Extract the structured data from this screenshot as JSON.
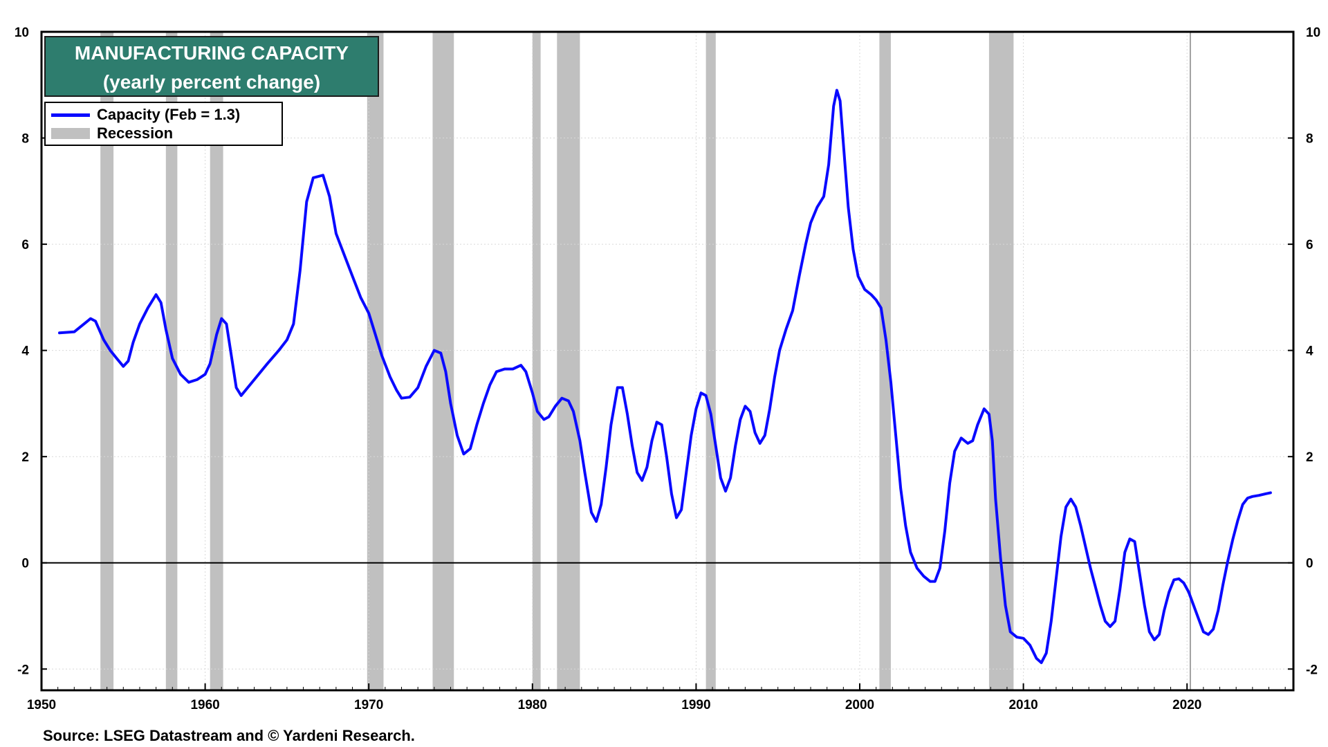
{
  "title": {
    "line1": "MANUFACTURING CAPACITY",
    "line2": "(yearly percent change)"
  },
  "legend": {
    "series_label": "Capacity (Feb = 1.3)",
    "recession_label": "Recession"
  },
  "source": "Source: LSEG Datastream and © Yardeni Research.",
  "colors": {
    "series": "#0a0aff",
    "recession": "#c0c0c0",
    "title_bg": "#2e7d6e"
  },
  "chart_data": {
    "type": "line",
    "title": "MANUFACTURING CAPACITY (yearly percent change)",
    "xlabel": "",
    "ylabel": "",
    "xlim": [
      1950,
      2026.5
    ],
    "ylim": [
      -2.4,
      10
    ],
    "y_ticks": [
      -2,
      0,
      2,
      4,
      6,
      8,
      10
    ],
    "x_ticks": [
      1950,
      1960,
      1970,
      1980,
      1990,
      2000,
      2010,
      2020
    ],
    "zero_line": 0,
    "reference_vline": 2020.2,
    "recessions": [
      [
        1953.6,
        1954.4
      ],
      [
        1957.6,
        1958.3
      ],
      [
        1960.3,
        1961.1
      ],
      [
        1969.9,
        1970.9
      ],
      [
        1973.9,
        1975.2
      ],
      [
        1980.0,
        1980.5
      ],
      [
        1981.5,
        1982.9
      ],
      [
        1990.6,
        1991.2
      ],
      [
        2001.2,
        2001.9
      ],
      [
        2007.9,
        2009.4
      ]
    ],
    "series": [
      {
        "name": "Capacity (Feb = 1.3)",
        "points": [
          [
            1951.1,
            4.33
          ],
          [
            1952.0,
            4.35
          ],
          [
            1952.6,
            4.5
          ],
          [
            1953.0,
            4.6
          ],
          [
            1953.3,
            4.55
          ],
          [
            1953.8,
            4.2
          ],
          [
            1954.2,
            4.0
          ],
          [
            1954.6,
            3.85
          ],
          [
            1955.0,
            3.7
          ],
          [
            1955.3,
            3.8
          ],
          [
            1955.6,
            4.15
          ],
          [
            1956.0,
            4.5
          ],
          [
            1956.5,
            4.8
          ],
          [
            1957.0,
            5.05
          ],
          [
            1957.3,
            4.9
          ],
          [
            1957.6,
            4.4
          ],
          [
            1958.0,
            3.85
          ],
          [
            1958.5,
            3.55
          ],
          [
            1959.0,
            3.4
          ],
          [
            1959.5,
            3.45
          ],
          [
            1960.0,
            3.55
          ],
          [
            1960.3,
            3.75
          ],
          [
            1960.7,
            4.3
          ],
          [
            1961.0,
            4.6
          ],
          [
            1961.3,
            4.5
          ],
          [
            1961.6,
            3.9
          ],
          [
            1961.9,
            3.3
          ],
          [
            1962.2,
            3.15
          ],
          [
            1963.0,
            3.45
          ],
          [
            1963.8,
            3.75
          ],
          [
            1964.5,
            4.0
          ],
          [
            1965.0,
            4.2
          ],
          [
            1965.4,
            4.5
          ],
          [
            1965.8,
            5.5
          ],
          [
            1966.2,
            6.8
          ],
          [
            1966.6,
            7.25
          ],
          [
            1967.2,
            7.3
          ],
          [
            1967.6,
            6.9
          ],
          [
            1968.0,
            6.2
          ],
          [
            1968.5,
            5.8
          ],
          [
            1969.0,
            5.4
          ],
          [
            1969.5,
            5.0
          ],
          [
            1970.0,
            4.7
          ],
          [
            1970.4,
            4.3
          ],
          [
            1970.8,
            3.9
          ],
          [
            1971.3,
            3.5
          ],
          [
            1971.7,
            3.25
          ],
          [
            1972.0,
            3.1
          ],
          [
            1972.5,
            3.12
          ],
          [
            1973.0,
            3.3
          ],
          [
            1973.5,
            3.7
          ],
          [
            1974.0,
            4.0
          ],
          [
            1974.4,
            3.95
          ],
          [
            1974.7,
            3.6
          ],
          [
            1975.0,
            3.0
          ],
          [
            1975.4,
            2.4
          ],
          [
            1975.8,
            2.05
          ],
          [
            1976.2,
            2.15
          ],
          [
            1976.6,
            2.6
          ],
          [
            1977.0,
            3.0
          ],
          [
            1977.4,
            3.35
          ],
          [
            1977.8,
            3.6
          ],
          [
            1978.3,
            3.65
          ],
          [
            1978.8,
            3.65
          ],
          [
            1979.3,
            3.72
          ],
          [
            1979.6,
            3.6
          ],
          [
            1980.0,
            3.2
          ],
          [
            1980.3,
            2.85
          ],
          [
            1980.7,
            2.7
          ],
          [
            1981.0,
            2.75
          ],
          [
            1981.4,
            2.95
          ],
          [
            1981.8,
            3.1
          ],
          [
            1982.2,
            3.05
          ],
          [
            1982.5,
            2.85
          ],
          [
            1982.9,
            2.3
          ],
          [
            1983.2,
            1.7
          ],
          [
            1983.6,
            0.95
          ],
          [
            1983.9,
            0.78
          ],
          [
            1984.2,
            1.1
          ],
          [
            1984.5,
            1.8
          ],
          [
            1984.8,
            2.6
          ],
          [
            1985.2,
            3.3
          ],
          [
            1985.5,
            3.3
          ],
          [
            1985.8,
            2.8
          ],
          [
            1986.1,
            2.2
          ],
          [
            1986.4,
            1.7
          ],
          [
            1986.7,
            1.55
          ],
          [
            1987.0,
            1.8
          ],
          [
            1987.3,
            2.3
          ],
          [
            1987.6,
            2.65
          ],
          [
            1987.9,
            2.6
          ],
          [
            1988.2,
            2.0
          ],
          [
            1988.5,
            1.3
          ],
          [
            1988.8,
            0.85
          ],
          [
            1989.1,
            1.0
          ],
          [
            1989.4,
            1.7
          ],
          [
            1989.7,
            2.4
          ],
          [
            1990.0,
            2.9
          ],
          [
            1990.3,
            3.2
          ],
          [
            1990.6,
            3.15
          ],
          [
            1990.9,
            2.8
          ],
          [
            1991.2,
            2.2
          ],
          [
            1991.5,
            1.6
          ],
          [
            1991.8,
            1.35
          ],
          [
            1992.1,
            1.6
          ],
          [
            1992.4,
            2.2
          ],
          [
            1992.7,
            2.7
          ],
          [
            1993.0,
            2.95
          ],
          [
            1993.3,
            2.85
          ],
          [
            1993.6,
            2.45
          ],
          [
            1993.9,
            2.25
          ],
          [
            1994.2,
            2.4
          ],
          [
            1994.5,
            2.9
          ],
          [
            1994.8,
            3.5
          ],
          [
            1995.1,
            4.0
          ],
          [
            1995.5,
            4.4
          ],
          [
            1995.9,
            4.75
          ],
          [
            1996.3,
            5.4
          ],
          [
            1996.7,
            6.0
          ],
          [
            1997.0,
            6.4
          ],
          [
            1997.4,
            6.7
          ],
          [
            1997.8,
            6.9
          ],
          [
            1998.1,
            7.5
          ],
          [
            1998.4,
            8.6
          ],
          [
            1998.6,
            8.9
          ],
          [
            1998.8,
            8.7
          ],
          [
            1999.0,
            7.9
          ],
          [
            1999.3,
            6.7
          ],
          [
            1999.6,
            5.9
          ],
          [
            1999.9,
            5.4
          ],
          [
            2000.3,
            5.15
          ],
          [
            2000.7,
            5.05
          ],
          [
            2001.0,
            4.95
          ],
          [
            2001.3,
            4.8
          ],
          [
            2001.6,
            4.2
          ],
          [
            2001.9,
            3.4
          ],
          [
            2002.2,
            2.4
          ],
          [
            2002.5,
            1.4
          ],
          [
            2002.8,
            0.7
          ],
          [
            2003.1,
            0.2
          ],
          [
            2003.5,
            -0.1
          ],
          [
            2003.9,
            -0.25
          ],
          [
            2004.3,
            -0.35
          ],
          [
            2004.6,
            -0.35
          ],
          [
            2004.9,
            -0.1
          ],
          [
            2005.2,
            0.6
          ],
          [
            2005.5,
            1.5
          ],
          [
            2005.8,
            2.1
          ],
          [
            2006.2,
            2.35
          ],
          [
            2006.6,
            2.25
          ],
          [
            2006.9,
            2.3
          ],
          [
            2007.2,
            2.6
          ],
          [
            2007.6,
            2.9
          ],
          [
            2007.9,
            2.8
          ],
          [
            2008.1,
            2.3
          ],
          [
            2008.3,
            1.2
          ],
          [
            2008.6,
            0.1
          ],
          [
            2008.9,
            -0.8
          ],
          [
            2009.2,
            -1.3
          ],
          [
            2009.6,
            -1.4
          ],
          [
            2010.0,
            -1.42
          ],
          [
            2010.4,
            -1.55
          ],
          [
            2010.8,
            -1.8
          ],
          [
            2011.1,
            -1.88
          ],
          [
            2011.4,
            -1.7
          ],
          [
            2011.7,
            -1.1
          ],
          [
            2012.0,
            -0.3
          ],
          [
            2012.3,
            0.5
          ],
          [
            2012.6,
            1.05
          ],
          [
            2012.9,
            1.2
          ],
          [
            2013.2,
            1.05
          ],
          [
            2013.5,
            0.7
          ],
          [
            2013.8,
            0.3
          ],
          [
            2014.1,
            -0.1
          ],
          [
            2014.4,
            -0.45
          ],
          [
            2014.7,
            -0.8
          ],
          [
            2015.0,
            -1.1
          ],
          [
            2015.3,
            -1.2
          ],
          [
            2015.6,
            -1.1
          ],
          [
            2015.9,
            -0.5
          ],
          [
            2016.2,
            0.2
          ],
          [
            2016.5,
            0.45
          ],
          [
            2016.8,
            0.4
          ],
          [
            2017.1,
            -0.2
          ],
          [
            2017.4,
            -0.8
          ],
          [
            2017.7,
            -1.3
          ],
          [
            2018.0,
            -1.45
          ],
          [
            2018.3,
            -1.35
          ],
          [
            2018.6,
            -0.9
          ],
          [
            2018.9,
            -0.55
          ],
          [
            2019.2,
            -0.32
          ],
          [
            2019.5,
            -0.3
          ],
          [
            2019.8,
            -0.38
          ],
          [
            2020.1,
            -0.55
          ],
          [
            2020.4,
            -0.8
          ],
          [
            2020.7,
            -1.05
          ],
          [
            2021.0,
            -1.3
          ],
          [
            2021.3,
            -1.35
          ],
          [
            2021.6,
            -1.25
          ],
          [
            2021.9,
            -0.9
          ],
          [
            2022.2,
            -0.4
          ],
          [
            2022.5,
            0.05
          ],
          [
            2022.8,
            0.45
          ],
          [
            2023.1,
            0.8
          ],
          [
            2023.4,
            1.1
          ],
          [
            2023.7,
            1.22
          ],
          [
            2024.0,
            1.25
          ],
          [
            2024.4,
            1.27
          ],
          [
            2024.8,
            1.3
          ],
          [
            2025.1,
            1.32
          ]
        ]
      }
    ]
  }
}
